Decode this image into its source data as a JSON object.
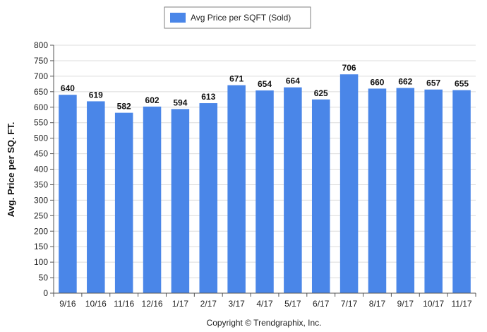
{
  "chart_data": {
    "type": "bar",
    "categories": [
      "9/16",
      "10/16",
      "11/16",
      "12/16",
      "1/17",
      "2/17",
      "3/17",
      "4/17",
      "5/17",
      "6/17",
      "7/17",
      "8/17",
      "9/17",
      "10/17",
      "11/17"
    ],
    "series": [
      {
        "name": "Avg Price per SQFT (Sold)",
        "values": [
          640,
          619,
          582,
          602,
          594,
          613,
          671,
          654,
          664,
          625,
          706,
          660,
          662,
          657,
          655
        ],
        "color": "#4a86e8"
      }
    ],
    "ylabel": "Avg. Price per SQ. FT.",
    "xlabel": "",
    "ylim": [
      0,
      800
    ],
    "yticks": [
      0,
      50,
      100,
      150,
      200,
      250,
      300,
      350,
      400,
      450,
      500,
      550,
      600,
      650,
      700,
      750,
      800
    ],
    "grid": true,
    "legend_position": "top-center",
    "data_labels": true
  },
  "footer": {
    "copyright": "Copyright © Trendgraphix, Inc."
  }
}
